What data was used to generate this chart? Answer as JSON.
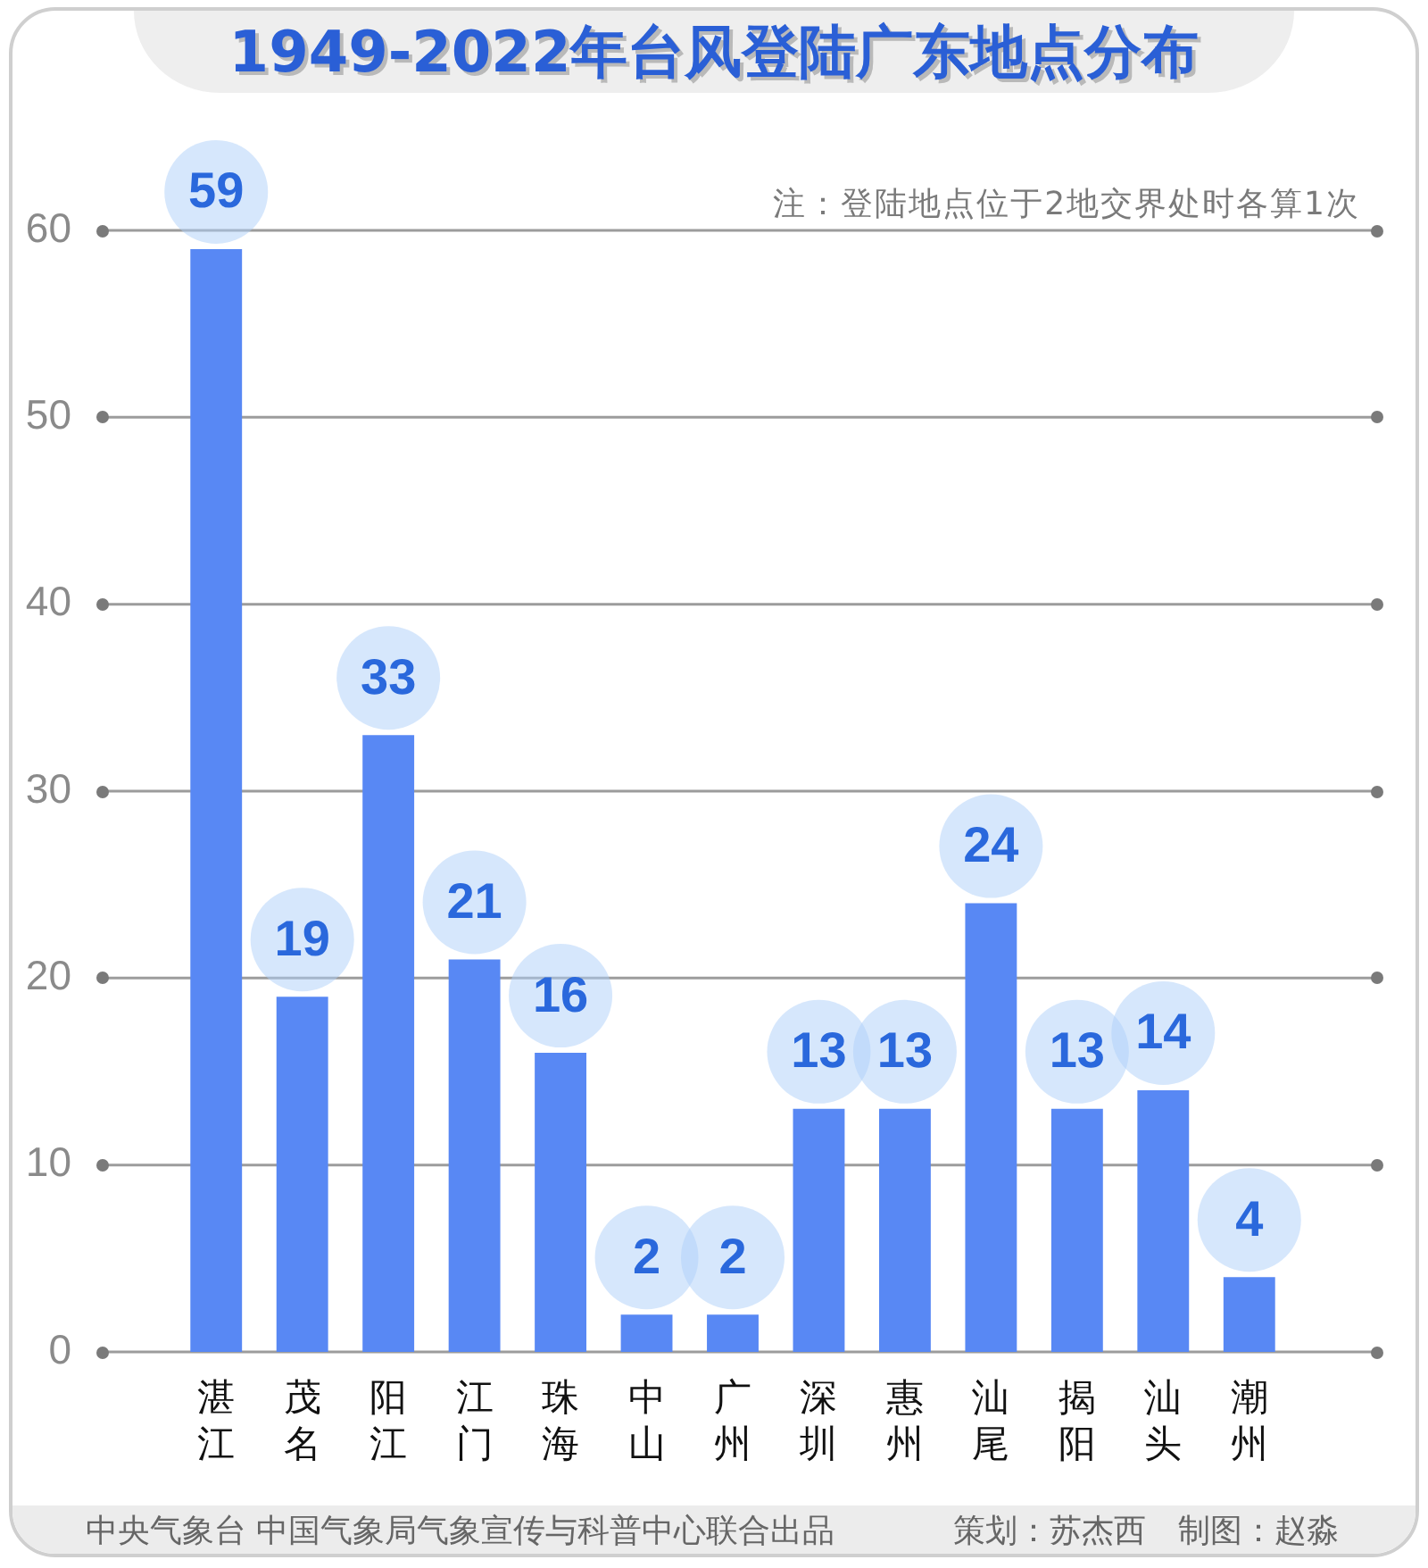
{
  "chart_data": {
    "type": "bar",
    "title": "1949-2022年台风登陆广东地点分布",
    "categories": [
      "湛江",
      "茂名",
      "阳江",
      "江门",
      "珠海",
      "中山",
      "广州",
      "深圳",
      "惠州",
      "汕尾",
      "揭阳",
      "汕头",
      "潮州"
    ],
    "values": [
      59,
      19,
      33,
      21,
      16,
      2,
      2,
      13,
      13,
      24,
      13,
      14,
      4
    ],
    "color": "#5888f4",
    "ylim": [
      0,
      60
    ],
    "yticks": [
      0,
      10,
      20,
      30,
      40,
      50,
      60
    ],
    "grid": "y",
    "data_labels": true,
    "annotations": [
      "注：登陆地点位于2地交界处时各算1次",
      "中央气象台 中国气象局气象宣传与科普中心联合出品",
      "策划：苏杰西",
      "制图：赵淼"
    ]
  }
}
